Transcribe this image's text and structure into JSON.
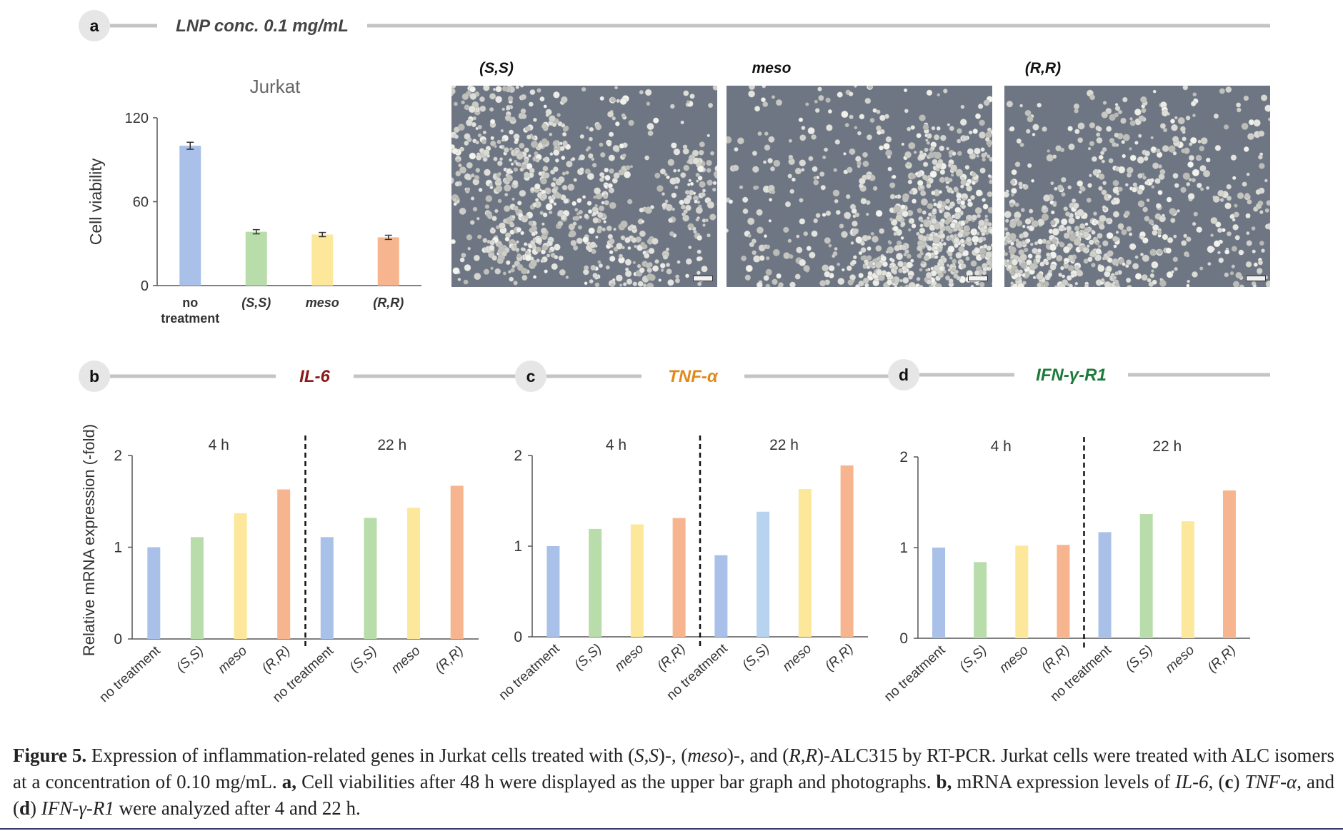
{
  "panels": {
    "a": {
      "label": "a",
      "title": "LNP conc. 0.1 mg/mL"
    },
    "b": {
      "label": "b",
      "title": "IL-6",
      "color": "#8b1a1a"
    },
    "c": {
      "label": "c",
      "title": "TNF-α",
      "color": "#e08a1e"
    },
    "d": {
      "label": "d",
      "title": "IFN-γ-R1",
      "color": "#1d7a3a"
    }
  },
  "micrographs": [
    {
      "title": "(S,S)"
    },
    {
      "title": "meso"
    },
    {
      "title": "(R,R)"
    }
  ],
  "colors": {
    "no_treatment": "#a9c0e8",
    "SS": "#b9dcab",
    "meso": "#fde79a",
    "RR": "#f6b58e",
    "SS_22h_c": "#b7d3ef"
  },
  "chart_data": [
    {
      "type": "bar",
      "panel": "a",
      "title": "Jurkat",
      "ylabel": "Cell viability",
      "categories": [
        "no treatment",
        "(S,S)",
        "meso",
        "(R,R)"
      ],
      "values": [
        100,
        38.5,
        36.5,
        34.5
      ],
      "error": [
        2.5,
        1.5,
        1.5,
        1.5
      ],
      "ylim": [
        0,
        120
      ],
      "yticks": [
        0,
        60,
        120
      ]
    },
    {
      "type": "bar",
      "panel": "b",
      "ylabel": "Relative mRNA expression  (-fold)",
      "groups": [
        "4 h",
        "22 h"
      ],
      "categories": [
        "no treatment",
        "(S,S)",
        "meso",
        "(R,R)"
      ],
      "series": [
        {
          "name": "4 h",
          "values": [
            1.0,
            1.11,
            1.37,
            1.63
          ]
        },
        {
          "name": "22 h",
          "values": [
            1.11,
            1.32,
            1.43,
            1.67
          ]
        }
      ],
      "ylim": [
        0,
        2
      ],
      "yticks": [
        0,
        1,
        2
      ]
    },
    {
      "type": "bar",
      "panel": "c",
      "groups": [
        "4 h",
        "22 h"
      ],
      "categories": [
        "no treatment",
        "(S,S)",
        "meso",
        "(R,R)"
      ],
      "series": [
        {
          "name": "4 h",
          "values": [
            1.0,
            1.19,
            1.24,
            1.31
          ]
        },
        {
          "name": "22 h",
          "values": [
            0.9,
            1.38,
            1.63,
            1.89
          ]
        }
      ],
      "ylim": [
        0,
        2
      ],
      "yticks": [
        0,
        1,
        2
      ]
    },
    {
      "type": "bar",
      "panel": "d",
      "groups": [
        "4 h",
        "22 h"
      ],
      "categories": [
        "no treatment",
        "(S,S)",
        "meso",
        "(R,R)"
      ],
      "series": [
        {
          "name": "4 h",
          "values": [
            1.0,
            0.84,
            1.02,
            1.03
          ]
        },
        {
          "name": "22 h",
          "values": [
            1.17,
            1.37,
            1.29,
            1.63
          ]
        }
      ],
      "ylim": [
        0,
        2
      ],
      "yticks": [
        0,
        1,
        2
      ]
    }
  ],
  "caption": {
    "fig_label": "Figure 5.",
    "p1": " Expression of inflammation-related genes in Jurkat cells treated with (",
    "p1_ss": "S,S",
    "p2": ")-, (",
    "p2_meso": "meso",
    "p3": ")-, and (",
    "p3_rr": "R,R",
    "p4": ")-ALC315 by RT-PCR. Jurkat cells were treated with ALC isomers at a concentration of 0.10 mg/mL. ",
    "a_label": "a,",
    "p5": " Cell viabilities after 48 h were displayed as the upper bar graph and photographs. ",
    "b_label": "b,",
    "p6": " mRNA expression levels of ",
    "p6_il6": "IL-6",
    "p7": ", (",
    "c_label": "c",
    "p8": ") ",
    "p8_tnf": "TNF-α",
    "p9": ", and (",
    "d_label": "d",
    "p10": ") ",
    "p10_ifn": "IFN-γ-R1",
    "p11": " were analyzed after 4 and 22 h."
  }
}
